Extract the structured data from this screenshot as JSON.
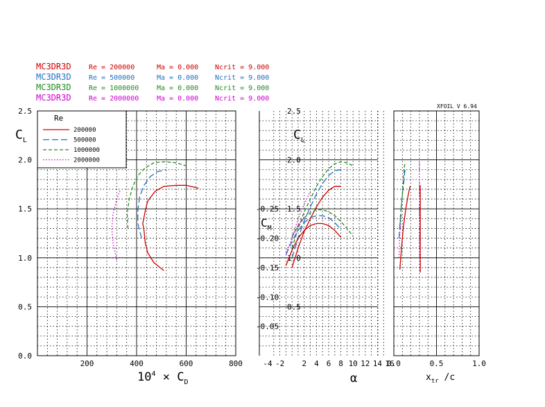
{
  "header": {
    "version": "XFOIL V 6.94",
    "runs": [
      {
        "airfoil": "MC3DR3D",
        "re": "Re = 200000",
        "ma": "Ma = 0.000",
        "ncrit": "Ncrit = 9.000",
        "color": "#cc0000"
      },
      {
        "airfoil": "MC3DR3D",
        "re": "Re = 500000",
        "ma": "Ma = 0.000",
        "ncrit": "Ncrit = 9.000",
        "color": "#1f6fbf"
      },
      {
        "airfoil": "MC3DR3D",
        "re": "Re = 1000000",
        "ma": "Ma = 0.000",
        "ncrit": "Ncrit = 9.000",
        "color": "#228b22"
      },
      {
        "airfoil": "MC3DR3D",
        "re": "Re = 2000000",
        "ma": "Ma = 0.000",
        "ncrit": "Ncrit = 9.000",
        "color": "#cc00cc"
      }
    ]
  },
  "chart_data": [
    {
      "type": "line",
      "id": "drag-polar",
      "xlabel": "10⁴ × C_D",
      "ylabel": "C_L",
      "xlim": [
        0,
        800
      ],
      "ylim": [
        0,
        2.5
      ],
      "xticks": [
        "200",
        "400",
        "600",
        "800"
      ],
      "yticks": [
        "0.0",
        "0.5",
        "1.0",
        "1.5",
        "2.0",
        "2.5"
      ],
      "grid": true,
      "legend": {
        "title": "Re",
        "placement": "top-left",
        "entries": [
          "200000",
          "500000",
          "1000000",
          "2000000"
        ]
      },
      "series": [
        {
          "name": "200000",
          "color": "#cc0000",
          "dash": "solid",
          "points": [
            [
              510,
              0.87
            ],
            [
              470,
              0.95
            ],
            [
              445,
              1.05
            ],
            [
              435,
              1.15
            ],
            [
              430,
              1.28
            ],
            [
              425,
              1.35
            ],
            [
              435,
              1.48
            ],
            [
              445,
              1.58
            ],
            [
              475,
              1.68
            ],
            [
              510,
              1.73
            ],
            [
              560,
              1.74
            ],
            [
              600,
              1.74
            ],
            [
              650,
              1.71
            ]
          ]
        },
        {
          "name": "500000",
          "color": "#1f6fbf",
          "dash": "long",
          "points": [
            [
              420,
              1.2
            ],
            [
              405,
              1.35
            ],
            [
              405,
              1.48
            ],
            [
              412,
              1.62
            ],
            [
              430,
              1.74
            ],
            [
              455,
              1.83
            ],
            [
              485,
              1.88
            ],
            [
              520,
              1.9
            ]
          ]
        },
        {
          "name": "1000000",
          "color": "#228b22",
          "dash": "medium",
          "points": [
            [
              365,
              1.3
            ],
            [
              362,
              1.45
            ],
            [
              370,
              1.6
            ],
            [
              385,
              1.73
            ],
            [
              405,
              1.84
            ],
            [
              435,
              1.92
            ],
            [
              470,
              1.97
            ],
            [
              510,
              1.98
            ],
            [
              560,
              1.97
            ],
            [
              600,
              1.94
            ]
          ]
        },
        {
          "name": "2000000",
          "color": "#cc00cc",
          "dash": "dotted",
          "points": [
            [
              320,
              0.98
            ],
            [
              305,
              1.15
            ],
            [
              300,
              1.3
            ],
            [
              305,
              1.45
            ],
            [
              318,
              1.58
            ],
            [
              335,
              1.7
            ]
          ]
        }
      ]
    },
    {
      "type": "line",
      "id": "lift-moment-curve",
      "xlabel": "α",
      "ylabel": "C_L",
      "ylabel2": "C_M",
      "xlim": [
        -4,
        16
      ],
      "ylim": [
        0,
        2.5
      ],
      "xticks": [
        "-4",
        "-2",
        "2",
        "4",
        "6",
        "8",
        "10",
        "12",
        "14",
        "16"
      ],
      "yticks": [
        "0.5",
        "1.0",
        "1.5",
        "2.0",
        "2.5"
      ],
      "cmticks": [
        "-0.25",
        "-0.20",
        "-0.15",
        "-0.10",
        "-0.05"
      ],
      "grid": true,
      "series": [
        {
          "name": "CL 200000",
          "color": "#cc0000",
          "dash": "solid",
          "points": [
            [
              0,
              0.9
            ],
            [
              1,
              1.1
            ],
            [
              2,
              1.27
            ],
            [
              3,
              1.4
            ],
            [
              4,
              1.52
            ],
            [
              5,
              1.62
            ],
            [
              6,
              1.69
            ],
            [
              7,
              1.73
            ],
            [
              8,
              1.73
            ]
          ]
        },
        {
          "name": "CL 500000",
          "color": "#1f6fbf",
          "dash": "long",
          "points": [
            [
              0,
              1.0
            ],
            [
              1,
              1.2
            ],
            [
              2,
              1.38
            ],
            [
              3,
              1.52
            ],
            [
              4,
              1.65
            ],
            [
              5,
              1.76
            ],
            [
              6,
              1.84
            ],
            [
              7,
              1.89
            ],
            [
              8,
              1.9
            ]
          ]
        },
        {
          "name": "CL 1000000",
          "color": "#228b22",
          "dash": "medium",
          "points": [
            [
              0,
              1.1
            ],
            [
              1,
              1.3
            ],
            [
              2,
              1.47
            ],
            [
              3,
              1.6
            ],
            [
              4,
              1.73
            ],
            [
              5,
              1.83
            ],
            [
              6,
              1.91
            ],
            [
              7,
              1.96
            ],
            [
              8,
              1.98
            ],
            [
              9,
              1.97
            ],
            [
              10,
              1.94
            ]
          ]
        },
        {
          "name": "CL 2000000",
          "color": "#cc00cc",
          "dash": "dotted",
          "points": [
            [
              0,
              1.2
            ],
            [
              1,
              1.4
            ],
            [
              2,
              1.55
            ],
            [
              3,
              1.68
            ]
          ]
        },
        {
          "name": "CM 200000",
          "color": "#cc0000",
          "dash": "solid",
          "points": [
            [
              -1,
              0.92
            ],
            [
              0,
              1.08
            ],
            [
              1,
              1.2
            ],
            [
              2,
              1.28
            ],
            [
              3,
              1.33
            ],
            [
              4,
              1.35
            ],
            [
              5,
              1.35
            ],
            [
              6,
              1.33
            ],
            [
              7,
              1.28
            ],
            [
              8,
              1.21
            ]
          ]
        },
        {
          "name": "CM 500000",
          "color": "#1f6fbf",
          "dash": "long",
          "points": [
            [
              -1,
              1.03
            ],
            [
              0,
              1.17
            ],
            [
              1,
              1.28
            ],
            [
              2,
              1.36
            ],
            [
              3,
              1.41
            ],
            [
              4,
              1.43
            ],
            [
              5,
              1.43
            ],
            [
              6,
              1.41
            ],
            [
              7,
              1.36
            ],
            [
              8,
              1.29
            ]
          ]
        },
        {
          "name": "CM 1000000",
          "color": "#228b22",
          "dash": "medium",
          "points": [
            [
              0,
              1.22
            ],
            [
              1,
              1.33
            ],
            [
              2,
              1.41
            ],
            [
              3,
              1.46
            ],
            [
              4,
              1.49
            ],
            [
              5,
              1.49
            ],
            [
              6,
              1.47
            ],
            [
              7,
              1.43
            ],
            [
              8,
              1.37
            ],
            [
              9,
              1.3
            ],
            [
              10,
              1.22
            ]
          ]
        },
        {
          "name": "CM 2000000",
          "color": "#cc00cc",
          "dash": "dotted",
          "points": [
            [
              -1,
              1.05
            ],
            [
              0,
              1.2
            ],
            [
              1,
              1.33
            ],
            [
              2,
              1.42
            ]
          ]
        }
      ]
    },
    {
      "type": "line",
      "id": "transition-location",
      "xlabel": "x_tr / c",
      "ylabel": "",
      "xlim": [
        0,
        1
      ],
      "ylim": [
        0,
        2.5
      ],
      "xticks": [
        "0.0",
        "0.5",
        "1.0"
      ],
      "grid": true,
      "series": [
        {
          "name": "200000 top",
          "color": "#cc0000",
          "dash": "solid",
          "points": [
            [
              0.07,
              0.88
            ],
            [
              0.09,
              1.1
            ],
            [
              0.11,
              1.3
            ],
            [
              0.14,
              1.5
            ],
            [
              0.17,
              1.65
            ],
            [
              0.19,
              1.73
            ]
          ]
        },
        {
          "name": "200000 bottom",
          "color": "#cc0000",
          "dash": "solid",
          "points": [
            [
              0.31,
              0.85
            ],
            [
              0.31,
              1.3
            ],
            [
              0.31,
              1.74
            ]
          ]
        },
        {
          "name": "500000",
          "color": "#1f6fbf",
          "dash": "long",
          "points": [
            [
              0.06,
              1.2
            ],
            [
              0.08,
              1.45
            ],
            [
              0.1,
              1.65
            ],
            [
              0.12,
              1.8
            ],
            [
              0.13,
              1.9
            ]
          ]
        },
        {
          "name": "1000000",
          "color": "#228b22",
          "dash": "medium",
          "points": [
            [
              0.07,
              1.3
            ],
            [
              0.09,
              1.55
            ],
            [
              0.11,
              1.75
            ],
            [
              0.12,
              1.9
            ],
            [
              0.13,
              1.98
            ]
          ]
        },
        {
          "name": "2000000",
          "color": "#cc00cc",
          "dash": "dotted",
          "points": [
            [
              0.06,
              1.0
            ],
            [
              0.07,
              1.25
            ],
            [
              0.09,
              1.45
            ]
          ]
        },
        {
          "name": "2000000 bottom",
          "color": "#cc00cc",
          "dash": "dotted",
          "points": [
            [
              0.3,
              1.0
            ],
            [
              0.3,
              1.6
            ],
            [
              0.3,
              1.98
            ]
          ]
        }
      ]
    }
  ]
}
